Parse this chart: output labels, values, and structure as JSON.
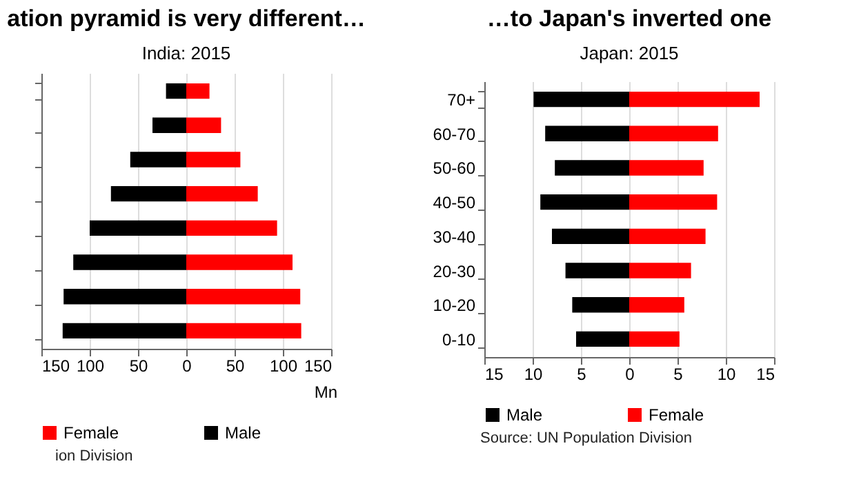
{
  "chart_data": [
    {
      "type": "bar",
      "orientation": "horizontal",
      "title": "ation pyramid is very different…",
      "subtitle": "India: 2015",
      "xlabel": "Mn",
      "categories": [
        null,
        null,
        null,
        null,
        null,
        null,
        null,
        null
      ],
      "series": [
        {
          "name": "Female",
          "color": "#ff0000",
          "values": [
            24,
            36,
            56,
            74,
            94,
            110,
            118,
            119
          ]
        },
        {
          "name": "Male",
          "color": "#000000",
          "values": [
            -21,
            -35,
            -58,
            -78,
            -100,
            -117,
            -127,
            -128
          ]
        }
      ],
      "stacked": true,
      "xlim": [
        -150,
        150
      ],
      "xticks": [
        {
          "value": -150,
          "label": "150"
        },
        {
          "value": -100,
          "label": "100"
        },
        {
          "value": -50,
          "label": "50"
        },
        0,
        50,
        100,
        150
      ],
      "grid": "x",
      "legend": "bottom",
      "tick_labels": "x",
      "annotations": [
        "ion Division"
      ]
    },
    {
      "type": "bar",
      "orientation": "horizontal",
      "title": "…to Japan's inverted one",
      "subtitle": "Japan: 2015",
      "categories": [
        "70+",
        "60-70",
        "50-60",
        "40-50",
        "30-40",
        "20-30",
        "10-20",
        "0-10"
      ],
      "series": [
        {
          "name": "Male",
          "color": "#000000",
          "values": [
            -9.9,
            -8.7,
            -7.7,
            -9.2,
            -8.0,
            -6.6,
            -5.9,
            -5.5
          ]
        },
        {
          "name": "Female",
          "color": "#ff0000",
          "values": [
            13.5,
            9.2,
            7.7,
            9.1,
            7.9,
            6.4,
            5.7,
            5.2
          ]
        }
      ],
      "stacked": true,
      "xlim": [
        -15,
        15
      ],
      "xticks": [
        {
          "value": -15,
          "label": "15"
        },
        {
          "value": -10,
          "label": "10"
        },
        {
          "value": -5,
          "label": "5"
        },
        0,
        5,
        10,
        15
      ],
      "grid": "x",
      "legend": "bottom",
      "annotations": [
        "Source: UN Population Division"
      ]
    }
  ]
}
